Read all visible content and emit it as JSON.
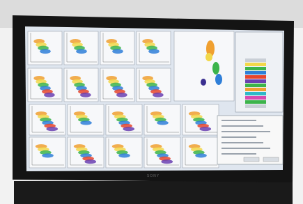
{
  "monitor": {
    "brand": "SONY"
  }
}
